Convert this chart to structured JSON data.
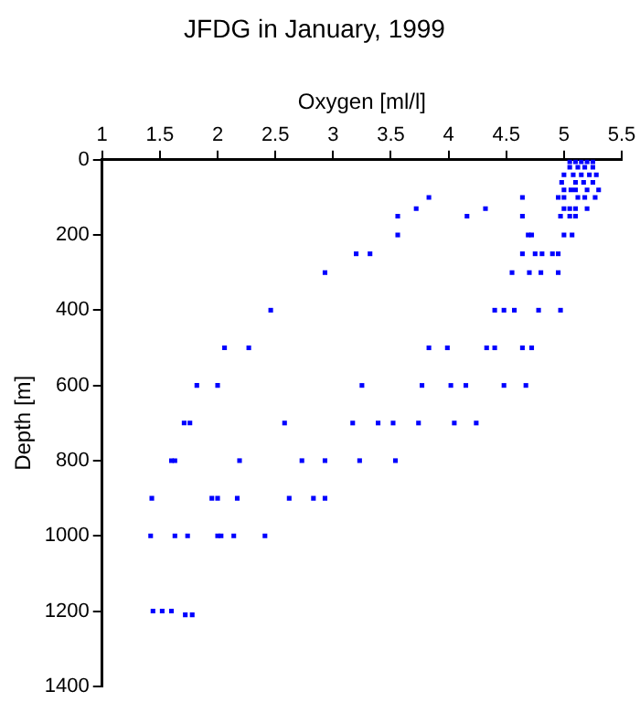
{
  "chart_data": {
    "type": "scatter",
    "title": "JFDG in January, 1999",
    "xlabel": "Oxygen [ml/l]",
    "ylabel": "Depth [m]",
    "xlim": [
      1,
      5.5
    ],
    "xticks": [
      1,
      1.5,
      2,
      2.5,
      3,
      3.5,
      4,
      4.5,
      5,
      5.5
    ],
    "ylim": [
      1400,
      0
    ],
    "yticks": [
      0,
      200,
      400,
      600,
      800,
      1000,
      1200,
      1400
    ],
    "grid": false,
    "legend": false,
    "marker": "square",
    "series": [
      {
        "color": "#0000ff",
        "x": [
          5.05,
          5.1,
          5.15,
          5.2,
          5.25,
          5.05,
          5.12,
          5.18,
          5.25,
          5.0,
          5.08,
          5.15,
          5.22,
          5.28,
          4.98,
          5.1,
          5.17,
          5.25,
          5.0,
          5.06,
          5.1,
          5.2,
          5.3,
          4.95,
          5.0,
          5.12,
          5.18,
          5.27,
          5.0,
          5.05,
          5.1,
          5.2,
          4.97,
          5.05,
          5.1,
          3.83,
          4.64,
          3.72,
          4.32,
          3.56,
          4.16,
          4.64,
          3.56,
          4.69,
          4.72,
          5.0,
          5.07,
          3.2,
          3.32,
          4.64,
          4.75,
          4.81,
          4.9,
          4.95,
          2.93,
          4.55,
          4.7,
          4.8,
          4.95,
          2.46,
          4.4,
          4.48,
          4.57,
          4.78,
          4.97,
          2.06,
          2.27,
          3.83,
          3.99,
          4.33,
          4.4,
          4.64,
          4.72,
          1.82,
          2.0,
          3.25,
          3.77,
          4.02,
          4.15,
          4.48,
          4.67,
          1.71,
          1.76,
          2.58,
          3.17,
          3.39,
          3.52,
          3.74,
          4.05,
          4.24,
          1.6,
          1.63,
          2.19,
          2.73,
          2.93,
          3.23,
          3.54,
          1.43,
          1.95,
          2.0,
          2.17,
          2.62,
          2.83,
          2.93,
          1.42,
          1.63,
          1.74,
          2.0,
          2.03,
          2.14,
          2.41,
          1.44,
          1.52,
          1.6,
          1.72,
          1.78
        ],
        "values": [
          5,
          5,
          5,
          5,
          5,
          20,
          20,
          20,
          20,
          40,
          40,
          40,
          40,
          40,
          60,
          60,
          60,
          60,
          80,
          80,
          80,
          80,
          80,
          100,
          100,
          100,
          100,
          100,
          130,
          130,
          130,
          130,
          150,
          150,
          150,
          100,
          100,
          130,
          130,
          150,
          150,
          150,
          200,
          200,
          200,
          200,
          200,
          250,
          250,
          250,
          250,
          250,
          250,
          250,
          300,
          300,
          300,
          300,
          300,
          400,
          400,
          400,
          400,
          400,
          400,
          500,
          500,
          500,
          500,
          500,
          500,
          500,
          500,
          600,
          600,
          600,
          600,
          600,
          600,
          600,
          600,
          700,
          700,
          700,
          700,
          700,
          700,
          700,
          700,
          700,
          800,
          800,
          800,
          800,
          800,
          800,
          800,
          900,
          900,
          900,
          900,
          900,
          900,
          900,
          1000,
          1000,
          1000,
          1000,
          1000,
          1000,
          1000,
          1200,
          1200,
          1200,
          1210,
          1210
        ]
      }
    ]
  }
}
